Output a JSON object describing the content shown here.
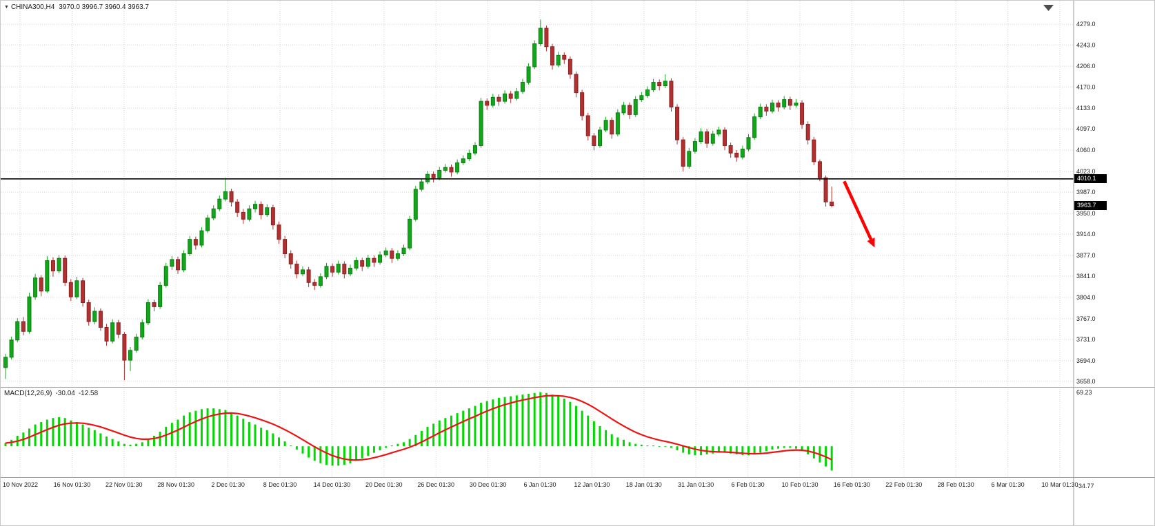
{
  "window": {
    "symbol_dropdown_icon": "▼",
    "symbol_title": "CHINA300,H4",
    "ohlc_text": "3970.0 3996.7 3960.4 3963.7"
  },
  "colors": {
    "bull": "#10a818",
    "bull_dark": "#0c7d12",
    "bear": "#b33030",
    "bear_dark": "#8c2222",
    "macd_hist": "#00d900",
    "macd_signal": "#ee1212",
    "grid": "#d4d4d4",
    "hline": "#000000",
    "arrow": "#fe0000",
    "separator": "#9a9a9a",
    "tag_bg": "#000000",
    "tag_text": "#ffffff",
    "axis_text": "#1c1c1c"
  },
  "chart_data": {
    "type": "candlestick",
    "title": "CHINA300,H4",
    "timeframe": "H4",
    "ohlc_current": {
      "open": 3970.0,
      "high": 3996.7,
      "low": 3960.4,
      "close": 3963.7
    },
    "price_axis": {
      "ticks": [
        4279.0,
        4243.0,
        4206.0,
        4170.0,
        4133.0,
        4097.0,
        4060.0,
        4023.0,
        3987.0,
        3950.0,
        3914.0,
        3877.0,
        3841.0,
        3804.0,
        3767.0,
        3731.0,
        3694.0,
        3658.0
      ],
      "range_max": 4290,
      "range_min": 3652
    },
    "time_axis": {
      "ticks": [
        "10 Nov 2022",
        "16 Nov 01:30",
        "22 Nov 01:30",
        "28 Nov 01:30",
        "2 Dec 01:30",
        "8 Dec 01:30",
        "14 Dec 01:30",
        "20 Dec 01:30",
        "26 Dec 01:30",
        "30 Dec 01:30",
        "6 Jan 01:30",
        "12 Jan 01:30",
        "18 Jan 01:30",
        "31 Jan 01:30",
        "6 Feb 01:30",
        "10 Feb 01:30",
        "16 Feb 01:30",
        "22 Feb 01:30",
        "28 Feb 01:30",
        "6 Mar 01:30",
        "10 Mar 01:30"
      ]
    },
    "candles": [
      [
        3682,
        3706,
        3662,
        3700
      ],
      [
        3700,
        3736,
        3696,
        3730
      ],
      [
        3730,
        3768,
        3726,
        3762
      ],
      [
        3762,
        3770,
        3738,
        3745
      ],
      [
        3745,
        3812,
        3741,
        3805
      ],
      [
        3805,
        3845,
        3800,
        3838
      ],
      [
        3838,
        3843,
        3806,
        3815
      ],
      [
        3815,
        3876,
        3812,
        3868
      ],
      [
        3868,
        3874,
        3840,
        3850
      ],
      [
        3850,
        3878,
        3846,
        3872
      ],
      [
        3872,
        3877,
        3824,
        3830
      ],
      [
        3830,
        3836,
        3798,
        3805
      ],
      [
        3805,
        3840,
        3801,
        3833
      ],
      [
        3833,
        3838,
        3788,
        3795
      ],
      [
        3795,
        3800,
        3755,
        3762
      ],
      [
        3762,
        3787,
        3757,
        3780
      ],
      [
        3780,
        3785,
        3746,
        3752
      ],
      [
        3752,
        3758,
        3720,
        3728
      ],
      [
        3728,
        3766,
        3724,
        3760
      ],
      [
        3760,
        3765,
        3733,
        3740
      ],
      [
        3740,
        3744,
        3660,
        3695
      ],
      [
        3695,
        3718,
        3676,
        3712
      ],
      [
        3712,
        3741,
        3708,
        3735
      ],
      [
        3735,
        3766,
        3731,
        3760
      ],
      [
        3760,
        3801,
        3756,
        3795
      ],
      [
        3795,
        3800,
        3780,
        3788
      ],
      [
        3788,
        3831,
        3784,
        3825
      ],
      [
        3825,
        3864,
        3821,
        3858
      ],
      [
        3858,
        3876,
        3852,
        3870
      ],
      [
        3870,
        3875,
        3845,
        3852
      ],
      [
        3852,
        3886,
        3848,
        3880
      ],
      [
        3880,
        3911,
        3876,
        3905
      ],
      [
        3905,
        3910,
        3887,
        3895
      ],
      [
        3895,
        3926,
        3891,
        3920
      ],
      [
        3920,
        3948,
        3916,
        3942
      ],
      [
        3942,
        3964,
        3938,
        3958
      ],
      [
        3958,
        3981,
        3954,
        3975
      ],
      [
        3975,
        4012,
        3971,
        3988
      ],
      [
        3988,
        3993,
        3962,
        3970
      ],
      [
        3970,
        3975,
        3944,
        3952
      ],
      [
        3952,
        3958,
        3932,
        3940
      ],
      [
        3940,
        3964,
        3936,
        3958
      ],
      [
        3958,
        3972,
        3952,
        3966
      ],
      [
        3966,
        3971,
        3940,
        3948
      ],
      [
        3948,
        3966,
        3944,
        3960
      ],
      [
        3960,
        3965,
        3922,
        3930
      ],
      [
        3930,
        3936,
        3897,
        3905
      ],
      [
        3905,
        3911,
        3872,
        3880
      ],
      [
        3880,
        3886,
        3854,
        3862
      ],
      [
        3862,
        3868,
        3837,
        3845
      ],
      [
        3845,
        3858,
        3841,
        3852
      ],
      [
        3852,
        3857,
        3822,
        3830
      ],
      [
        3830,
        3836,
        3817,
        3825
      ],
      [
        3825,
        3846,
        3821,
        3840
      ],
      [
        3840,
        3864,
        3836,
        3858
      ],
      [
        3858,
        3863,
        3840,
        3848
      ],
      [
        3848,
        3868,
        3844,
        3862
      ],
      [
        3862,
        3867,
        3837,
        3845
      ],
      [
        3845,
        3861,
        3841,
        3855
      ],
      [
        3855,
        3874,
        3851,
        3868
      ],
      [
        3868,
        3873,
        3850,
        3858
      ],
      [
        3858,
        3878,
        3854,
        3872
      ],
      [
        3872,
        3877,
        3857,
        3865
      ],
      [
        3865,
        3884,
        3861,
        3878
      ],
      [
        3878,
        3891,
        3874,
        3885
      ],
      [
        3885,
        3890,
        3864,
        3872
      ],
      [
        3872,
        3886,
        3868,
        3880
      ],
      [
        3880,
        3896,
        3876,
        3890
      ],
      [
        3890,
        3946,
        3886,
        3940
      ],
      [
        3940,
        3998,
        3936,
        3992
      ],
      [
        3992,
        4011,
        3988,
        4005
      ],
      [
        4005,
        4024,
        4001,
        4018
      ],
      [
        4018,
        4023,
        4004,
        4012
      ],
      [
        4012,
        4031,
        4008,
        4025
      ],
      [
        4025,
        4036,
        4021,
        4030
      ],
      [
        4030,
        4035,
        4014,
        4022
      ],
      [
        4022,
        4044,
        4018,
        4038
      ],
      [
        4038,
        4051,
        4034,
        4045
      ],
      [
        4045,
        4061,
        4041,
        4055
      ],
      [
        4055,
        4074,
        4051,
        4068
      ],
      [
        4068,
        4151,
        4064,
        4145
      ],
      [
        4145,
        4150,
        4130,
        4138
      ],
      [
        4138,
        4158,
        4134,
        4152
      ],
      [
        4152,
        4157,
        4137,
        4145
      ],
      [
        4145,
        4164,
        4141,
        4158
      ],
      [
        4158,
        4163,
        4142,
        4150
      ],
      [
        4150,
        4168,
        4146,
        4162
      ],
      [
        4162,
        4184,
        4158,
        4178
      ],
      [
        4178,
        4211,
        4174,
        4205
      ],
      [
        4205,
        4251,
        4201,
        4245
      ],
      [
        4245,
        4287,
        4241,
        4272
      ],
      [
        4272,
        4277,
        4232,
        4240
      ],
      [
        4240,
        4245,
        4200,
        4208
      ],
      [
        4208,
        4231,
        4204,
        4225
      ],
      [
        4225,
        4230,
        4210,
        4218
      ],
      [
        4218,
        4223,
        4184,
        4192
      ],
      [
        4192,
        4197,
        4152,
        4160
      ],
      [
        4160,
        4165,
        4112,
        4120
      ],
      [
        4120,
        4125,
        4077,
        4085
      ],
      [
        4085,
        4090,
        4060,
        4068
      ],
      [
        4068,
        4101,
        4064,
        4095
      ],
      [
        4095,
        4118,
        4091,
        4112
      ],
      [
        4112,
        4117,
        4080,
        4088
      ],
      [
        4088,
        4131,
        4084,
        4125
      ],
      [
        4125,
        4144,
        4121,
        4138
      ],
      [
        4138,
        4143,
        4114,
        4122
      ],
      [
        4122,
        4154,
        4118,
        4148
      ],
      [
        4148,
        4161,
        4144,
        4155
      ],
      [
        4155,
        4171,
        4151,
        4165
      ],
      [
        4165,
        4184,
        4161,
        4178
      ],
      [
        4178,
        4183,
        4164,
        4172
      ],
      [
        4172,
        4192,
        4168,
        4180
      ],
      [
        4180,
        4185,
        4127,
        4135
      ],
      [
        4135,
        4140,
        4070,
        4078
      ],
      [
        4078,
        4083,
        4023,
        4032
      ],
      [
        4032,
        4064,
        4028,
        4058
      ],
      [
        4058,
        4081,
        4054,
        4075
      ],
      [
        4075,
        4098,
        4071,
        4092
      ],
      [
        4092,
        4097,
        4064,
        4072
      ],
      [
        4072,
        4094,
        4068,
        4088
      ],
      [
        4088,
        4101,
        4084,
        4095
      ],
      [
        4095,
        4100,
        4060,
        4068
      ],
      [
        4068,
        4073,
        4047,
        4055
      ],
      [
        4055,
        4060,
        4040,
        4048
      ],
      [
        4048,
        4068,
        4044,
        4062
      ],
      [
        4062,
        4088,
        4058,
        4082
      ],
      [
        4082,
        4124,
        4078,
        4118
      ],
      [
        4118,
        4141,
        4114,
        4135
      ],
      [
        4135,
        4140,
        4120,
        4128
      ],
      [
        4128,
        4148,
        4124,
        4142
      ],
      [
        4142,
        4147,
        4127,
        4135
      ],
      [
        4135,
        4154,
        4131,
        4148
      ],
      [
        4148,
        4153,
        4130,
        4138
      ],
      [
        4138,
        4149,
        4134,
        4142
      ],
      [
        4142,
        4147,
        4097,
        4105
      ],
      [
        4105,
        4110,
        4070,
        4078
      ],
      [
        4078,
        4083,
        4034,
        4040
      ],
      [
        4040,
        4044,
        4006,
        4012
      ],
      [
        4012,
        4016,
        3962,
        3970
      ],
      [
        3970,
        3996.7,
        3960.4,
        3963.7
      ]
    ],
    "hline": {
      "price": 4010.1,
      "label": "4010.1"
    },
    "current_price_tag": {
      "price": 3963.7,
      "label": "3963.7"
    },
    "arrow_annotation": {
      "index_from": 141.1,
      "price_from": 4006,
      "index_to": 145.6,
      "price_to": 3905
    },
    "macd": {
      "label": "MACD(12,26,9)",
      "main_value": "-30.04",
      "signal_value": "-12.58",
      "axis_ticks": [
        69.23,
        -34.77
      ],
      "signal_period": 9,
      "histogram": [
        4,
        8,
        13,
        17,
        22,
        27,
        30,
        33,
        35,
        36,
        35,
        32,
        30,
        27,
        23,
        20,
        16,
        12,
        9,
        6,
        3,
        2,
        3,
        5,
        9,
        13,
        18,
        24,
        29,
        33,
        38,
        42,
        44,
        46,
        47,
        47,
        46,
        45,
        42,
        38,
        34,
        30,
        27,
        23,
        20,
        16,
        11,
        6,
        1,
        -4,
        -9,
        -14,
        -18,
        -21,
        -23,
        -24,
        -24,
        -23,
        -21,
        -18,
        -15,
        -12,
        -8,
        -5,
        -2,
        1,
        3,
        5,
        9,
        14,
        19,
        24,
        28,
        32,
        35,
        38,
        41,
        44,
        47,
        50,
        54,
        56,
        58,
        60,
        61,
        62,
        63,
        64,
        65,
        66,
        67,
        66,
        64,
        62,
        59,
        55,
        50,
        44,
        38,
        31,
        25,
        20,
        15,
        11,
        8,
        5,
        3,
        2,
        1,
        1,
        0,
        0,
        -2,
        -5,
        -8,
        -10,
        -11,
        -11,
        -10,
        -9,
        -8,
        -8,
        -9,
        -10,
        -11,
        -11,
        -10,
        -8,
        -6,
        -4,
        -3,
        -2,
        -2,
        -3,
        -6,
        -10,
        -15,
        -20,
        -25,
        -30.04
      ]
    }
  }
}
